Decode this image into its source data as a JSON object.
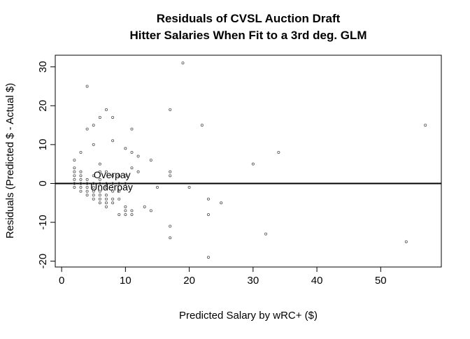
{
  "chart_data": {
    "type": "scatter",
    "title": [
      "Residuals of CVSL Auction Draft",
      "Hitter Salaries When Fit to a 3rd deg. GLM"
    ],
    "xlabel": "Predicted Salary by wRC+ ($)",
    "ylabel": "Residuals   (Predicted $ - Actual $)",
    "xlim": [
      -1,
      59.5
    ],
    "ylim": [
      -21.5,
      33
    ],
    "xticks": [
      0,
      10,
      20,
      30,
      40,
      50
    ],
    "yticks": [
      -20,
      -10,
      0,
      10,
      20,
      30
    ],
    "grid": false,
    "hline": 0,
    "annotations": [
      {
        "text": "Overpay",
        "x": 5,
        "y": 1.3
      },
      {
        "text": "Underpay",
        "x": 4.5,
        "y": -1.8
      }
    ],
    "points": [
      [
        2,
        6
      ],
      [
        2,
        4
      ],
      [
        2,
        3
      ],
      [
        2,
        2
      ],
      [
        2,
        1
      ],
      [
        2,
        0
      ],
      [
        2,
        -1
      ],
      [
        3,
        8
      ],
      [
        3,
        3
      ],
      [
        3,
        2
      ],
      [
        3,
        1
      ],
      [
        3,
        0
      ],
      [
        3,
        -1
      ],
      [
        3,
        -2
      ],
      [
        4,
        25
      ],
      [
        4,
        14
      ],
      [
        4,
        1
      ],
      [
        4,
        0
      ],
      [
        4,
        -1
      ],
      [
        4,
        -2
      ],
      [
        4,
        -3
      ],
      [
        5,
        15
      ],
      [
        5,
        10
      ],
      [
        5,
        2
      ],
      [
        5,
        0
      ],
      [
        5,
        -1
      ],
      [
        5,
        -2
      ],
      [
        5,
        -3
      ],
      [
        5,
        -4
      ],
      [
        6,
        17
      ],
      [
        6,
        5
      ],
      [
        6,
        3
      ],
      [
        6,
        1
      ],
      [
        6,
        0
      ],
      [
        6,
        -2
      ],
      [
        6,
        -3
      ],
      [
        6,
        -4
      ],
      [
        6,
        -5
      ],
      [
        7,
        19
      ],
      [
        7,
        3
      ],
      [
        7,
        0
      ],
      [
        7,
        -1
      ],
      [
        7,
        -3
      ],
      [
        7,
        -4
      ],
      [
        7,
        -5
      ],
      [
        7,
        -6
      ],
      [
        8,
        17
      ],
      [
        8,
        11
      ],
      [
        8,
        2
      ],
      [
        8,
        0
      ],
      [
        8,
        -2
      ],
      [
        8,
        -4
      ],
      [
        8,
        -5
      ],
      [
        9,
        2
      ],
      [
        9,
        0
      ],
      [
        9,
        -2
      ],
      [
        9,
        -4
      ],
      [
        9,
        -8
      ],
      [
        10,
        9
      ],
      [
        10,
        2
      ],
      [
        10,
        0
      ],
      [
        10,
        -6
      ],
      [
        10,
        -7
      ],
      [
        10,
        -8
      ],
      [
        11,
        14
      ],
      [
        11,
        8
      ],
      [
        11,
        4
      ],
      [
        11,
        -7
      ],
      [
        11,
        -8
      ],
      [
        12,
        7
      ],
      [
        12,
        3
      ],
      [
        13,
        -6
      ],
      [
        14,
        6
      ],
      [
        14,
        -7
      ],
      [
        15,
        -1
      ],
      [
        17,
        19
      ],
      [
        17,
        3
      ],
      [
        17,
        2
      ],
      [
        17,
        -11
      ],
      [
        17,
        -14
      ],
      [
        19,
        31
      ],
      [
        20,
        -1
      ],
      [
        22,
        15
      ],
      [
        23,
        -4
      ],
      [
        23,
        -8
      ],
      [
        23,
        -19
      ],
      [
        25,
        -5
      ],
      [
        30,
        5
      ],
      [
        32,
        -13
      ],
      [
        34,
        8
      ],
      [
        54,
        -15
      ],
      [
        57,
        15
      ]
    ]
  }
}
